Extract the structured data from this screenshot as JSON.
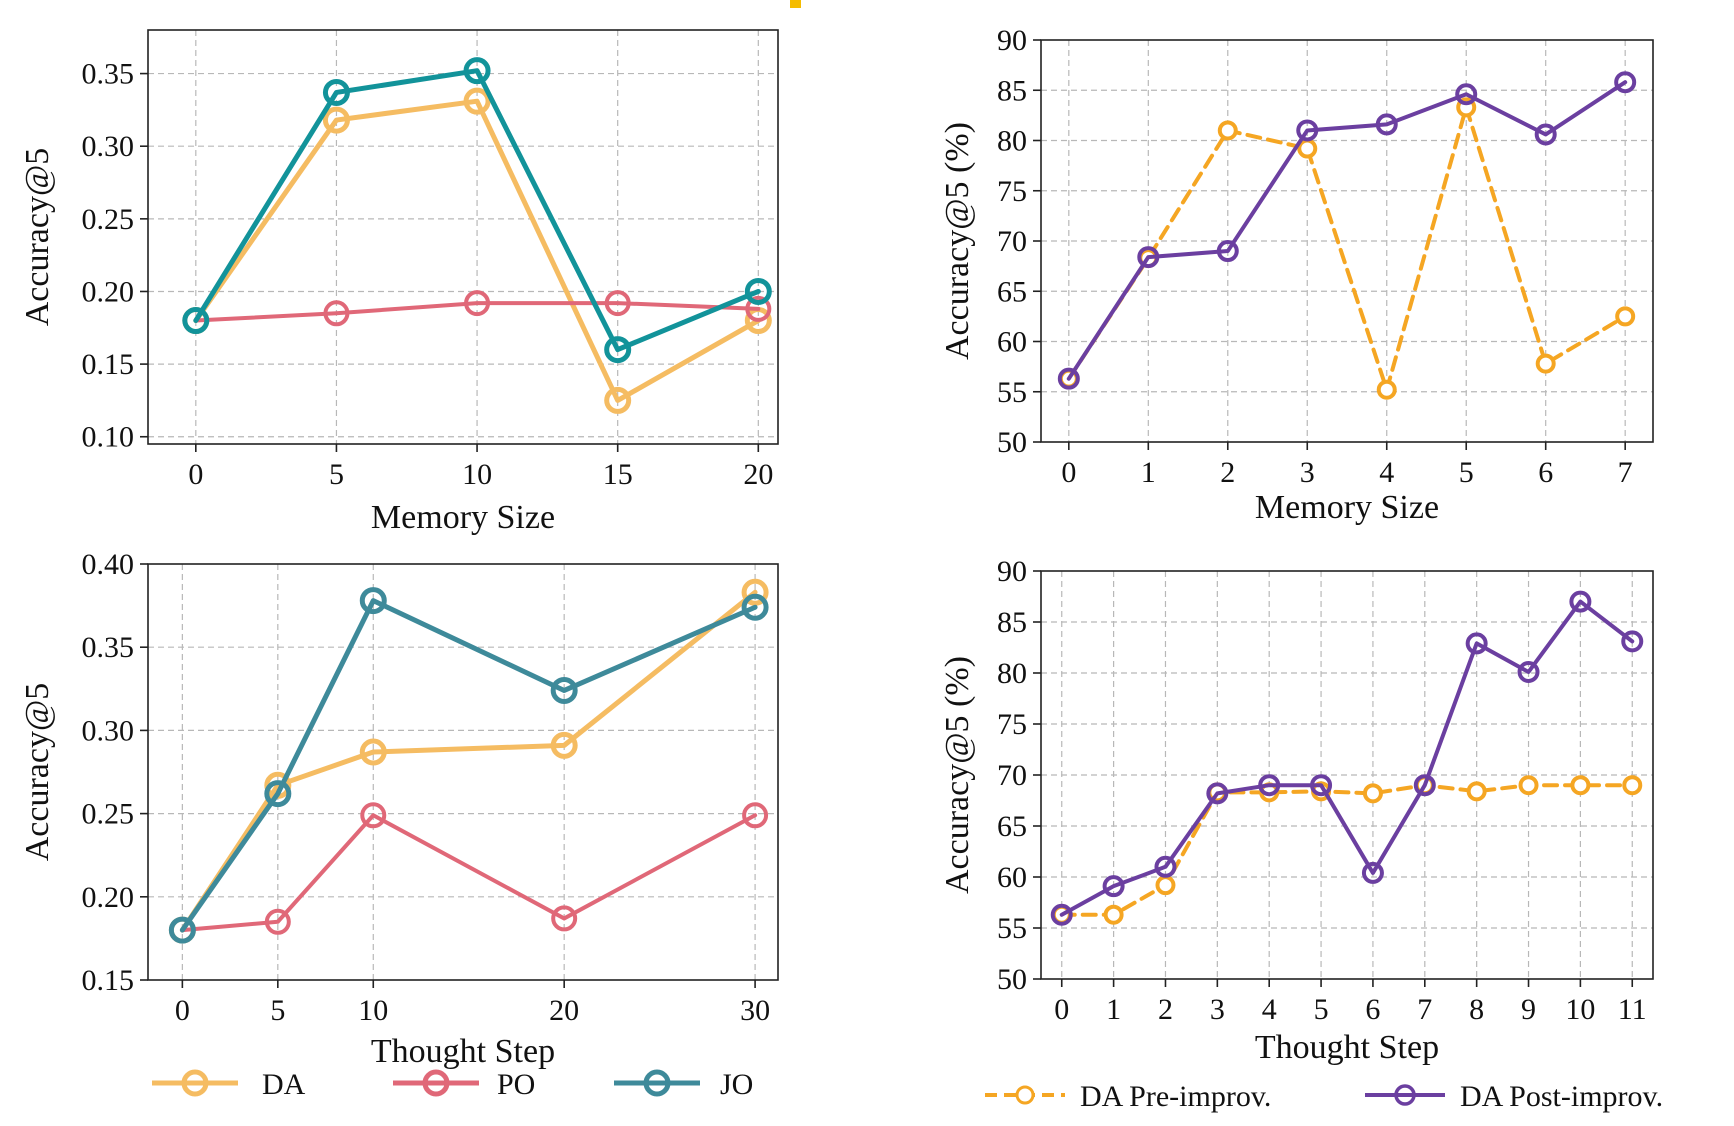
{
  "colors": {
    "DA": "#F5BC62",
    "PO": "#E06878",
    "JO_top": "#12939A",
    "JO_bottom": "#3E8A9A",
    "pre": "#F5A623",
    "post": "#6B3FA0"
  },
  "chart_data": [
    {
      "id": "memory-jointly",
      "type": "line",
      "xlabel": "Memory Size",
      "ylabel": "Accuracy@5",
      "x": [
        0,
        5,
        10,
        15,
        20
      ],
      "x_tick_labels": [
        "0",
        "5",
        "10",
        "15",
        "20"
      ],
      "ylim": [
        0.095,
        0.38
      ],
      "y_ticks": [
        0.1,
        0.15,
        0.2,
        0.25,
        0.3,
        0.35
      ],
      "y_tick_labels": [
        "0.10",
        "0.15",
        "0.20",
        "0.25",
        "0.30",
        "0.35"
      ],
      "grid": true,
      "series": [
        {
          "name": "DA",
          "values": [
            0.18,
            0.318,
            0.331,
            0.125,
            0.18
          ]
        },
        {
          "name": "PO",
          "values": [
            0.18,
            0.185,
            0.192,
            0.192,
            0.188
          ]
        },
        {
          "name": "JO",
          "values": [
            0.18,
            0.337,
            0.352,
            0.16,
            0.2
          ]
        }
      ]
    },
    {
      "id": "memory-improvement",
      "type": "line",
      "xlabel": "Memory Size",
      "ylabel": "Accuracy@5 (%)",
      "x": [
        0,
        1,
        2,
        3,
        4,
        5,
        6,
        7
      ],
      "x_tick_labels": [
        "0",
        "1",
        "2",
        "3",
        "4",
        "5",
        "6",
        "7"
      ],
      "ylim": [
        50,
        90
      ],
      "y_ticks": [
        50,
        55,
        60,
        65,
        70,
        75,
        80,
        85,
        90
      ],
      "y_tick_labels": [
        "50",
        "55",
        "60",
        "65",
        "70",
        "75",
        "80",
        "85",
        "90"
      ],
      "grid": true,
      "series": [
        {
          "name": "DA Pre-improv.",
          "values": [
            56.3,
            68.3,
            81.0,
            79.2,
            55.2,
            83.3,
            57.8,
            62.5
          ]
        },
        {
          "name": "DA Post-improv.",
          "values": [
            56.3,
            68.4,
            69.0,
            81.0,
            81.6,
            84.6,
            80.6,
            85.8
          ]
        }
      ]
    },
    {
      "id": "thought-jointly",
      "type": "line",
      "xlabel": "Thought Step",
      "ylabel": "Accuracy@5",
      "x": [
        0,
        5,
        10,
        20,
        30
      ],
      "x_tick_labels": [
        "0",
        "5",
        "10",
        "20",
        "30"
      ],
      "ylim": [
        0.15,
        0.4
      ],
      "y_ticks": [
        0.15,
        0.2,
        0.25,
        0.3,
        0.35,
        0.4
      ],
      "y_tick_labels": [
        "0.15",
        "0.20",
        "0.25",
        "0.30",
        "0.35",
        "0.40"
      ],
      "grid": true,
      "series": [
        {
          "name": "DA",
          "values": [
            0.18,
            0.267,
            0.287,
            0.291,
            0.383
          ]
        },
        {
          "name": "PO",
          "values": [
            0.18,
            0.185,
            0.249,
            0.187,
            0.249
          ]
        },
        {
          "name": "JO",
          "values": [
            0.18,
            0.262,
            0.378,
            0.324,
            0.374
          ]
        }
      ]
    },
    {
      "id": "thought-improvement",
      "type": "line",
      "xlabel": "Thought Step",
      "ylabel": "Accuracy@5 (%)",
      "x": [
        0,
        1,
        2,
        3,
        4,
        5,
        6,
        7,
        8,
        9,
        10,
        11
      ],
      "x_tick_labels": [
        "0",
        "1",
        "2",
        "3",
        "4",
        "5",
        "6",
        "7",
        "8",
        "9",
        "10",
        "11"
      ],
      "ylim": [
        50,
        90
      ],
      "y_ticks": [
        50,
        55,
        60,
        65,
        70,
        75,
        80,
        85,
        90
      ],
      "y_tick_labels": [
        "50",
        "55",
        "60",
        "65",
        "70",
        "75",
        "80",
        "85",
        "90"
      ],
      "grid": true,
      "series": [
        {
          "name": "DA Pre-improv.",
          "values": [
            56.3,
            56.3,
            59.2,
            68.3,
            68.3,
            68.4,
            68.2,
            69.0,
            68.4,
            69.0,
            69.0,
            69.0
          ]
        },
        {
          "name": "DA Post-improv.",
          "values": [
            56.3,
            59.1,
            61.0,
            68.2,
            69.0,
            69.0,
            60.4,
            69.0,
            82.9,
            80.1,
            87.0,
            83.1
          ]
        }
      ]
    }
  ],
  "legends": {
    "left": [
      "DA",
      "PO",
      "JO"
    ],
    "right": [
      "DA Pre-improv.",
      "DA Post-improv."
    ]
  }
}
